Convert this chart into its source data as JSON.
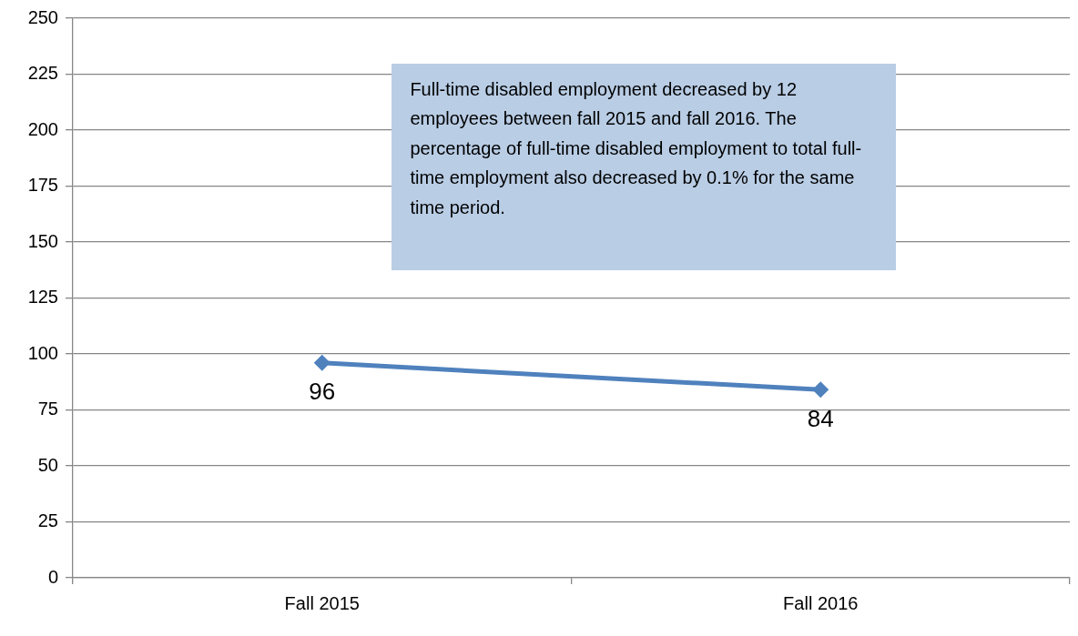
{
  "chart_data": {
    "type": "line",
    "categories": [
      "Fall 2015",
      "Fall 2016"
    ],
    "series": [
      {
        "color": "#4f81bd",
        "values": [
          96,
          84
        ]
      }
    ],
    "ylim": [
      0,
      250
    ],
    "yticks": [
      0,
      25,
      50,
      75,
      100,
      125,
      150,
      175,
      200,
      225,
      250
    ],
    "grid": "y",
    "marker": "diamond",
    "data_labels": true,
    "annotations": [
      "Full-time disabled employment decreased by 12 employees between fall 2015 and fall 2016. The percentage of full-time disabled employment to total full-time employment also decreased by 0.1% for the same time period."
    ]
  }
}
